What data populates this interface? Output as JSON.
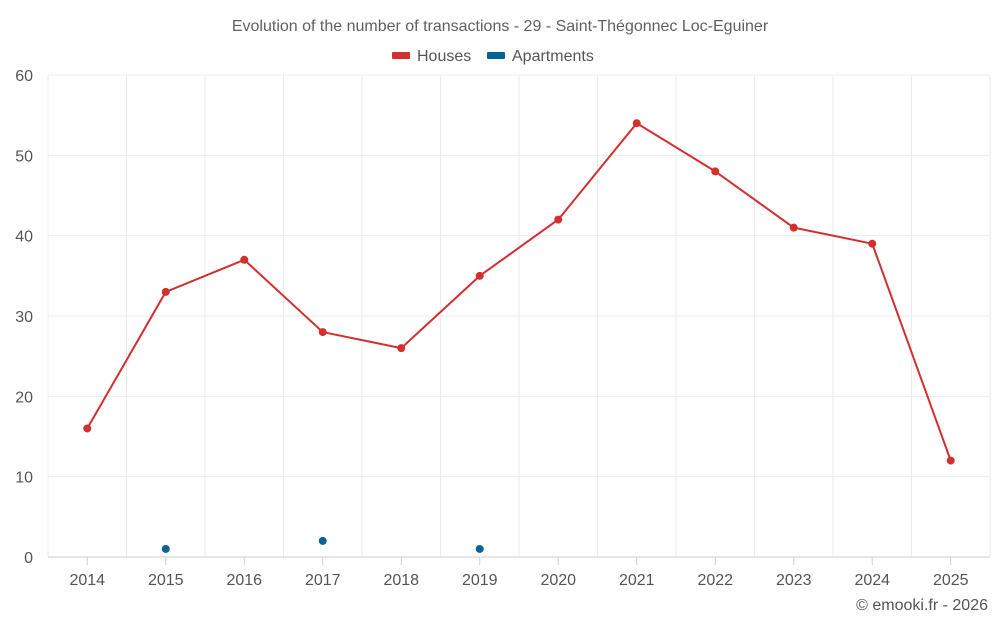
{
  "chart_data": {
    "type": "line",
    "title": "Evolution of the number of transactions - 29 - Saint-Thégonnec Loc-Eguiner",
    "categories": [
      "2014",
      "2015",
      "2016",
      "2017",
      "2018",
      "2019",
      "2020",
      "2021",
      "2022",
      "2023",
      "2024",
      "2025"
    ],
    "y_ticks": [
      "0",
      "10",
      "20",
      "30",
      "40",
      "50",
      "60"
    ],
    "ylim": [
      0,
      60
    ],
    "grid": true,
    "legend_position": "top-center",
    "series": [
      {
        "name": "Houses",
        "color": "#d32f2f",
        "line": true,
        "values": [
          16,
          33,
          37,
          28,
          26,
          35,
          42,
          54,
          48,
          41,
          39,
          12
        ]
      },
      {
        "name": "Apartments",
        "color": "#0a6396",
        "line": false,
        "values": [
          null,
          1,
          null,
          2,
          null,
          1,
          null,
          null,
          null,
          null,
          null,
          null
        ]
      }
    ],
    "credit": "© emooki.fr - 2026"
  }
}
